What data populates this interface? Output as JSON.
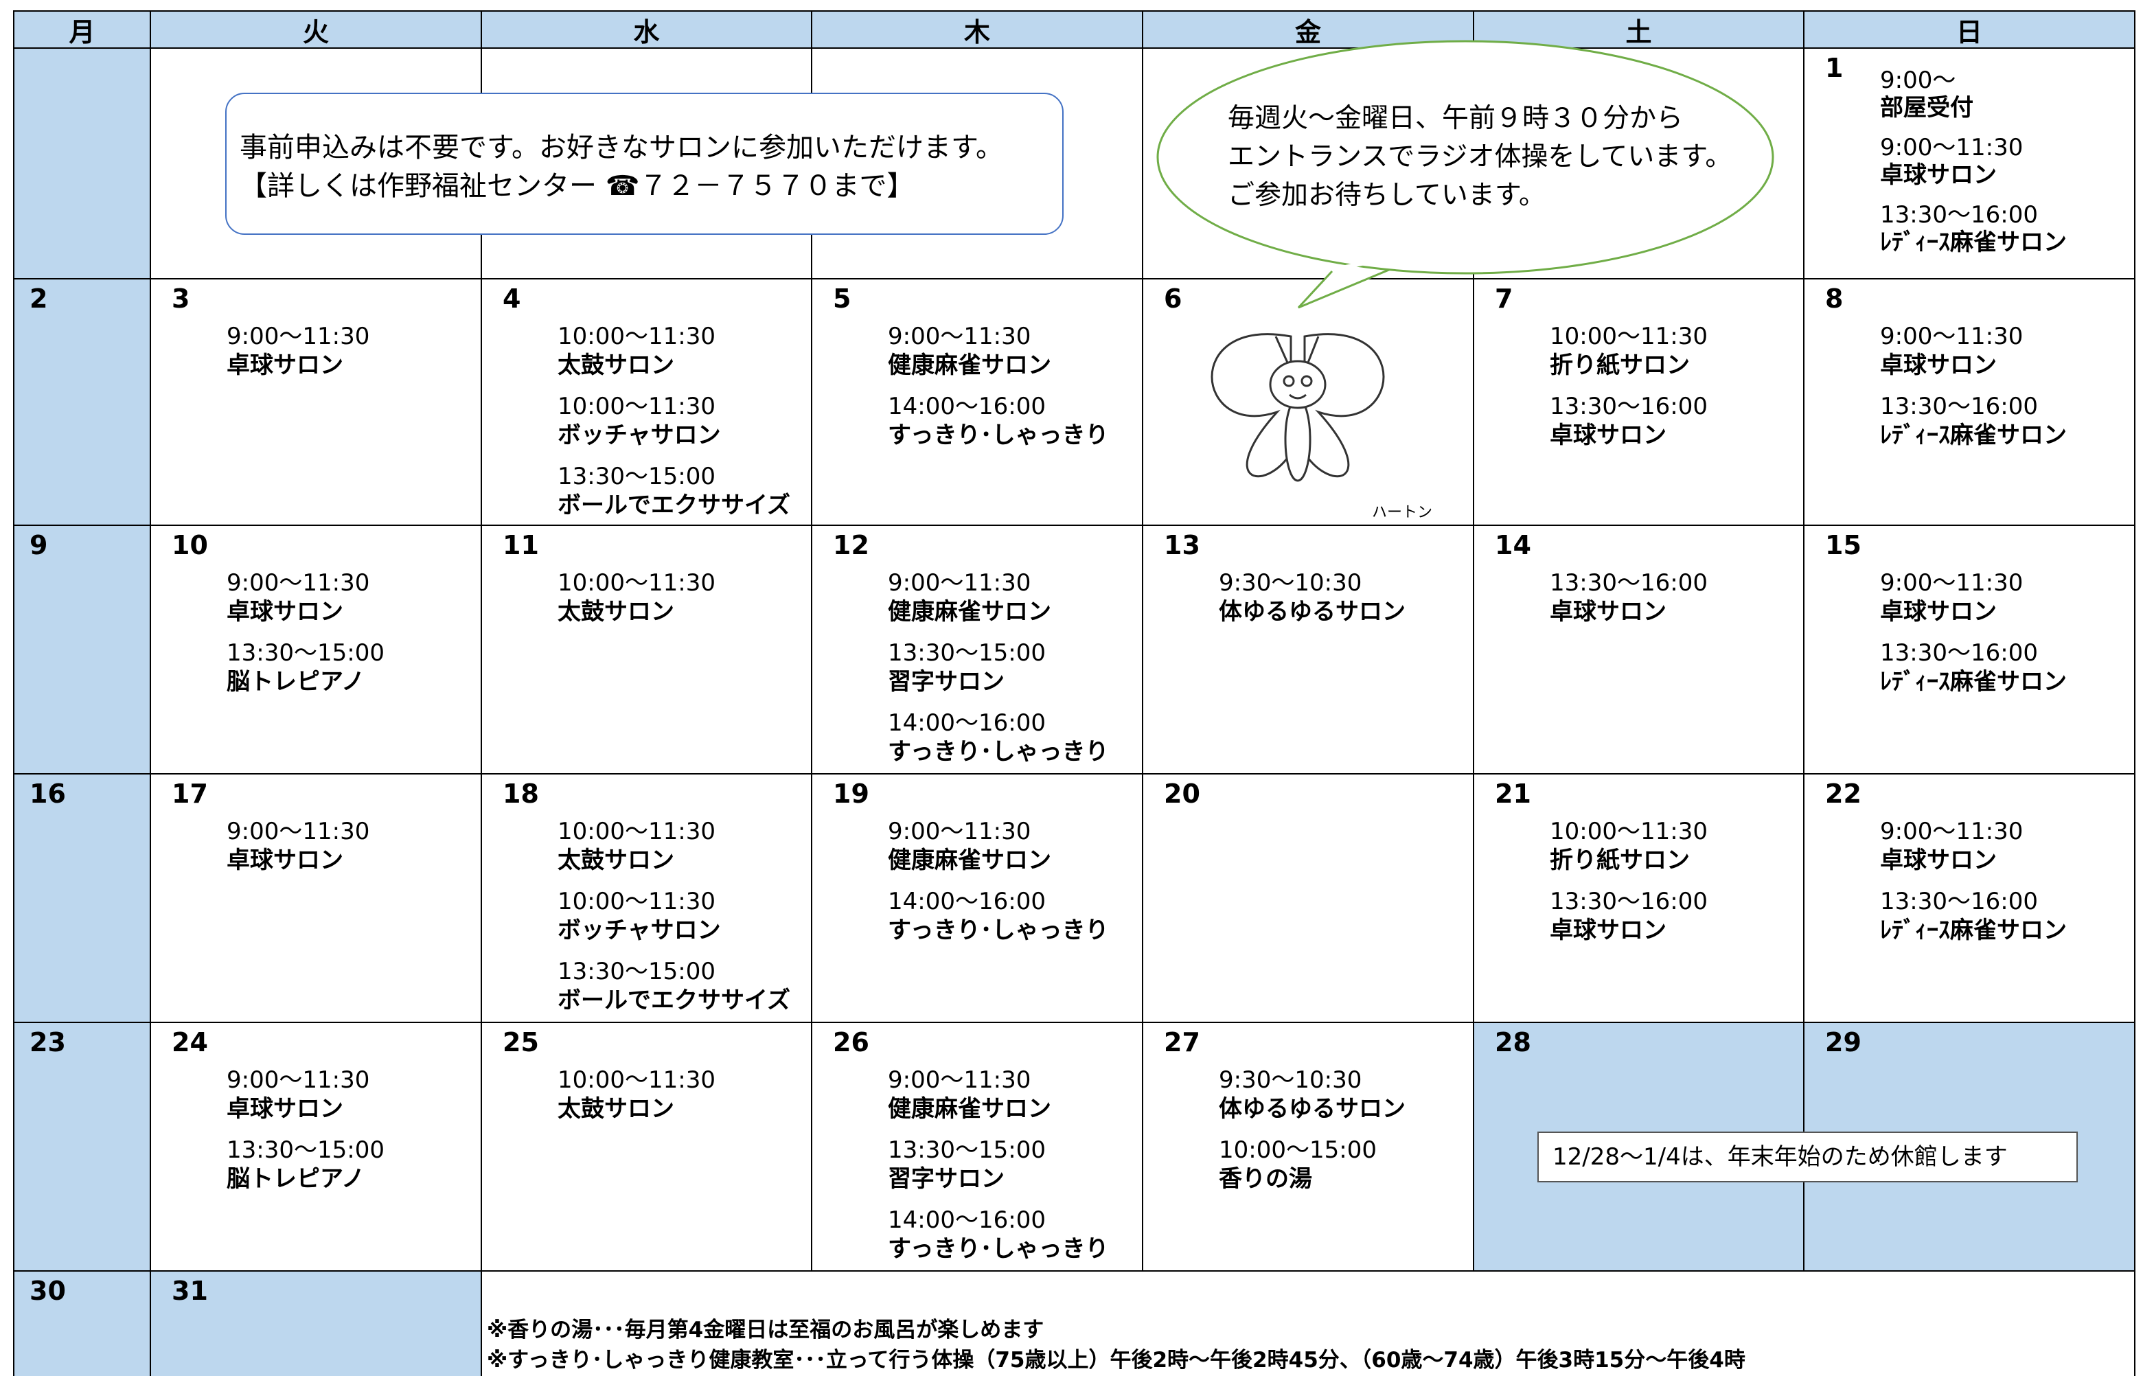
{
  "calendar": {
    "weekdays": [
      "月",
      "火",
      "水",
      "木",
      "金",
      "土",
      "日"
    ],
    "weeks": [
      [
        {
          "day": "1",
          "events": [
            {
              "time": "9:00～",
              "name": "部屋受付"
            },
            {
              "time": "9:00～11:30",
              "name": "卓球サロン"
            },
            {
              "time": "13:30～16:00",
              "name": "ﾚﾃﾞｨｰｽ麻雀サロン"
            }
          ]
        }
      ],
      [
        {
          "day": "2",
          "closed": true
        },
        {
          "day": "3",
          "events": [
            {
              "time": "9:00～11:30",
              "name": "卓球サロン"
            }
          ]
        },
        {
          "day": "4",
          "events": [
            {
              "time": "10:00～11:30",
              "name": "太鼓サロン"
            },
            {
              "time": "10:00～11:30",
              "name": "ボッチャサロン"
            },
            {
              "time": "13:30～15:00",
              "name": "ボールでエクササイズ"
            }
          ]
        },
        {
          "day": "5",
          "events": [
            {
              "time": "9:00～11:30",
              "name": "健康麻雀サロン"
            },
            {
              "time": "14:00～16:00",
              "name": "すっきり･しゃっきり"
            }
          ]
        },
        {
          "day": "6"
        },
        {
          "day": "7",
          "events": [
            {
              "time": "10:00～11:30",
              "name": "折り紙サロン"
            },
            {
              "time": "13:30～16:00",
              "name": "卓球サロン"
            }
          ]
        },
        {
          "day": "8",
          "events": [
            {
              "time": "9:00～11:30",
              "name": "卓球サロン"
            },
            {
              "time": "13:30～16:00",
              "name": "ﾚﾃﾞｨｰｽ麻雀サロン"
            }
          ]
        }
      ],
      [
        {
          "day": "9",
          "closed": true
        },
        {
          "day": "10",
          "events": [
            {
              "time": "9:00～11:30",
              "name": "卓球サロン"
            },
            {
              "time": "13:30～15:00",
              "name": "脳トレピアノ"
            }
          ]
        },
        {
          "day": "11",
          "events": [
            {
              "time": "10:00～11:30",
              "name": "太鼓サロン"
            }
          ]
        },
        {
          "day": "12",
          "events": [
            {
              "time": "9:00～11:30",
              "name": "健康麻雀サロン"
            },
            {
              "time": "13:30～15:00",
              "name": "習字サロン"
            },
            {
              "time": "14:00～16:00",
              "name": "すっきり･しゃっきり"
            }
          ]
        },
        {
          "day": "13",
          "events": [
            {
              "time": "9:30～10:30",
              "name": "体ゆるゆるサロン"
            }
          ]
        },
        {
          "day": "14",
          "events": [
            {
              "time": "13:30～16:00",
              "name": "卓球サロン"
            }
          ]
        },
        {
          "day": "15",
          "events": [
            {
              "time": "9:00～11:30",
              "name": "卓球サロン"
            },
            {
              "time": "13:30～16:00",
              "name": "ﾚﾃﾞｨｰｽ麻雀サロン"
            }
          ]
        }
      ],
      [
        {
          "day": "16",
          "closed": true
        },
        {
          "day": "17",
          "events": [
            {
              "time": "9:00～11:30",
              "name": "卓球サロン"
            }
          ]
        },
        {
          "day": "18",
          "events": [
            {
              "time": "10:00～11:30",
              "name": "太鼓サロン"
            },
            {
              "time": "10:00～11:30",
              "name": "ボッチャサロン"
            },
            {
              "time": "13:30～15:00",
              "name": "ボールでエクササイズ"
            }
          ]
        },
        {
          "day": "19",
          "events": [
            {
              "time": "9:00～11:30",
              "name": "健康麻雀サロン"
            },
            {
              "time": "14:00～16:00",
              "name": "すっきり･しゃっきり"
            }
          ]
        },
        {
          "day": "20"
        },
        {
          "day": "21",
          "events": [
            {
              "time": "10:00～11:30",
              "name": "折り紙サロン"
            },
            {
              "time": "13:30～16:00",
              "name": "卓球サロン"
            }
          ]
        },
        {
          "day": "22",
          "events": [
            {
              "time": "9:00～11:30",
              "name": "卓球サロン"
            },
            {
              "time": "13:30～16:00",
              "name": "ﾚﾃﾞｨｰｽ麻雀サロン"
            }
          ]
        }
      ],
      [
        {
          "day": "23",
          "closed": true
        },
        {
          "day": "24",
          "events": [
            {
              "time": "9:00～11:30",
              "name": "卓球サロン"
            },
            {
              "time": "13:30～15:00",
              "name": "脳トレピアノ"
            }
          ]
        },
        {
          "day": "25",
          "events": [
            {
              "time": "10:00～11:30",
              "name": "太鼓サロン"
            }
          ]
        },
        {
          "day": "26",
          "events": [
            {
              "time": "9:00～11:30",
              "name": "健康麻雀サロン"
            },
            {
              "time": "13:30～15:00",
              "name": "習字サロン"
            },
            {
              "time": "14:00～16:00",
              "name": "すっきり･しゃっきり"
            }
          ]
        },
        {
          "day": "27",
          "events": [
            {
              "time": "9:30～10:30",
              "name": "体ゆるゆるサロン"
            },
            {
              "time": "10:00～15:00",
              "name": "香りの湯"
            }
          ]
        },
        {
          "day": "28",
          "closed": true
        },
        {
          "day": "29",
          "closed": true
        }
      ],
      [
        {
          "day": "30",
          "closed": true
        },
        {
          "day": "31",
          "closed": true
        }
      ]
    ]
  },
  "notice": {
    "lines": [
      "事前申込みは不要です。お好きなサロンに参加いただけます。",
      "【詳しくは作野福祉センター ☎７２－７５７０まで】"
    ]
  },
  "speech": {
    "lines": [
      "毎週火～金曜日、午前９時３０分から",
      "エントランスでラジオ体操をしています。",
      "ご参加お待ちしています。"
    ]
  },
  "mascot": {
    "label": "ハートン"
  },
  "closure_note": "12/28～1/4は、年末年始のため休館します",
  "footer_notes": [
    "※香りの湯･･･毎月第4金曜日は至福のお風呂が楽しめます",
    "※すっきり･しゃっきり健康教室･･･立って行う体操（75歳以上）午後2時～午後2時45分、（60歳～74歳）午後3時15分～午後4時"
  ]
}
